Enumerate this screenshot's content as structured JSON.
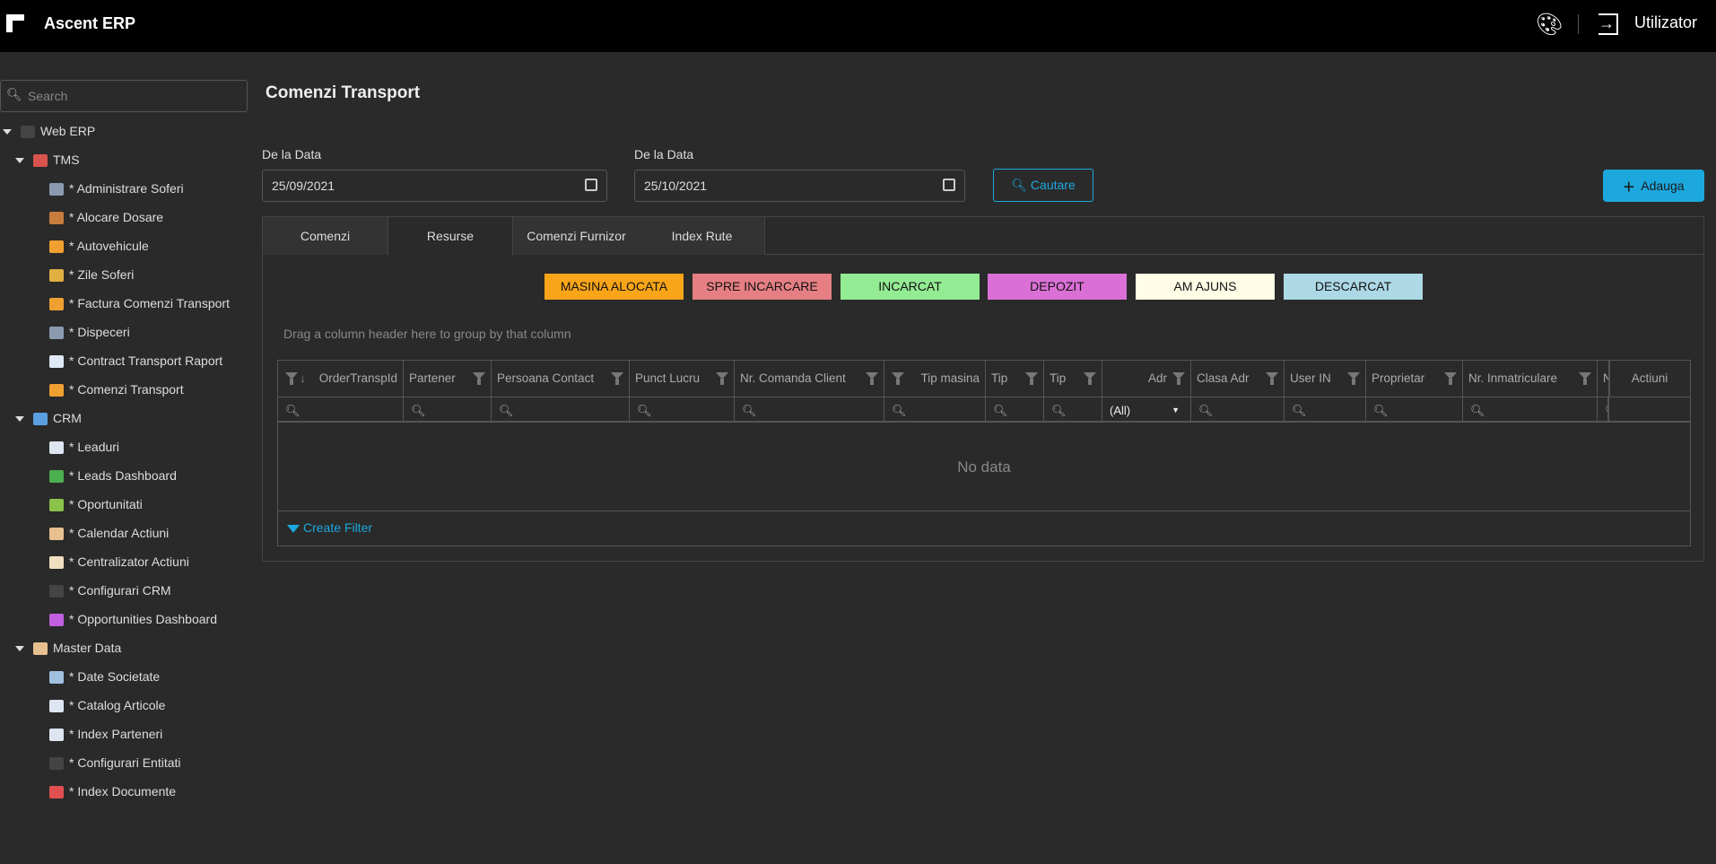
{
  "header": {
    "app_title": "Ascent ERP",
    "user_label": "Utilizator",
    "icons": [
      "logo-icon",
      "palette-icon",
      "logout-icon"
    ]
  },
  "sidebar": {
    "search_placeholder": "Search",
    "tree": [
      {
        "label": "Web ERP",
        "level": 0,
        "expanded": true,
        "icon_color": "#444"
      },
      {
        "label": "TMS",
        "level": 1,
        "expanded": true,
        "icon_color": "#d9534f"
      },
      {
        "label": "* Administrare Soferi",
        "level": 2,
        "icon_color": "#8a9bb0"
      },
      {
        "label": "* Alocare Dosare",
        "level": 2,
        "icon_color": "#c87d3e"
      },
      {
        "label": "* Autovehicule",
        "level": 2,
        "icon_color": "#f0a030"
      },
      {
        "label": "* Zile Soferi",
        "level": 2,
        "icon_color": "#e0b040"
      },
      {
        "label": "* Factura Comenzi Transport",
        "level": 2,
        "icon_color": "#f0a030"
      },
      {
        "label": "* Dispeceri",
        "level": 2,
        "icon_color": "#8a9bb0"
      },
      {
        "label": "* Contract Transport Raport",
        "level": 2,
        "icon_color": "#dfe8f5"
      },
      {
        "label": "* Comenzi Transport",
        "level": 2,
        "icon_color": "#f0a030"
      },
      {
        "label": "CRM",
        "level": 1,
        "expanded": true,
        "icon_color": "#5aa0e0"
      },
      {
        "label": "* Leaduri",
        "level": 2,
        "icon_color": "#dde6f0"
      },
      {
        "label": "* Leads Dashboard",
        "level": 2,
        "icon_color": "#4caf50"
      },
      {
        "label": "* Oportunitati",
        "level": 2,
        "icon_color": "#8bc34a"
      },
      {
        "label": "* Calendar Actiuni",
        "level": 2,
        "icon_color": "#e8c090"
      },
      {
        "label": "* Centralizator Actiuni",
        "level": 2,
        "icon_color": "#f0e0c0"
      },
      {
        "label": "* Configurari CRM",
        "level": 2,
        "icon_color": "#444"
      },
      {
        "label": "* Opportunities Dashboard",
        "level": 2,
        "icon_color": "#c060e0"
      },
      {
        "label": "Master Data",
        "level": 1,
        "expanded": true,
        "icon_color": "#e8c090"
      },
      {
        "label": "* Date Societate",
        "level": 2,
        "icon_color": "#a0c0e0"
      },
      {
        "label": "* Catalog Articole",
        "level": 2,
        "icon_color": "#dde6f0"
      },
      {
        "label": "* Index Parteneri",
        "level": 2,
        "icon_color": "#dde6f0"
      },
      {
        "label": "* Configurari Entitati",
        "level": 2,
        "icon_color": "#444"
      },
      {
        "label": "* Index Documente",
        "level": 2,
        "icon_color": "#e05050"
      }
    ]
  },
  "page": {
    "title": "Comenzi Transport",
    "filters": {
      "from_label": "De la Data",
      "from_value": "25/09/2021",
      "to_label": "De la Data",
      "to_value": "25/10/2021"
    },
    "search_button": "Cautare",
    "add_button": "Adauga",
    "tabs": [
      {
        "label": "Comenzi",
        "active": false
      },
      {
        "label": "Resurse",
        "active": true
      },
      {
        "label": "Comenzi Furnizor",
        "active": false
      },
      {
        "label": "Index Rute",
        "active": false
      }
    ],
    "statuses": [
      {
        "label": "MASINA ALOCATA",
        "color": "#f9a519"
      },
      {
        "label": "SPRE INCARCARE",
        "color": "#e57f84"
      },
      {
        "label": "INCARCAT",
        "color": "#93eb93"
      },
      {
        "label": "DEPOZIT",
        "color": "#da70d6"
      },
      {
        "label": "AM AJUNS",
        "color": "#fffde6"
      },
      {
        "label": "DESCARCAT",
        "color": "#add8e6"
      }
    ],
    "grid": {
      "group_panel_text": "Drag a column header here to group by that column",
      "columns": [
        "OrderTranspId",
        "Partener",
        "Persoana Contact",
        "Punct Lucru",
        "Nr. Comanda Client",
        "Tip masina",
        "Tip",
        "Tip",
        "Adr",
        "Clasa Adr",
        "User IN",
        "Proprietar",
        "Nr. Inmatriculare",
        "N",
        "Actiuni"
      ],
      "adr_filter_value": "(All)",
      "no_data_text": "No data",
      "create_filter_label": "Create Filter"
    }
  },
  "colors": {
    "accent": "#1ca8dd",
    "background": "#2a2a2a",
    "header": "#000000"
  }
}
